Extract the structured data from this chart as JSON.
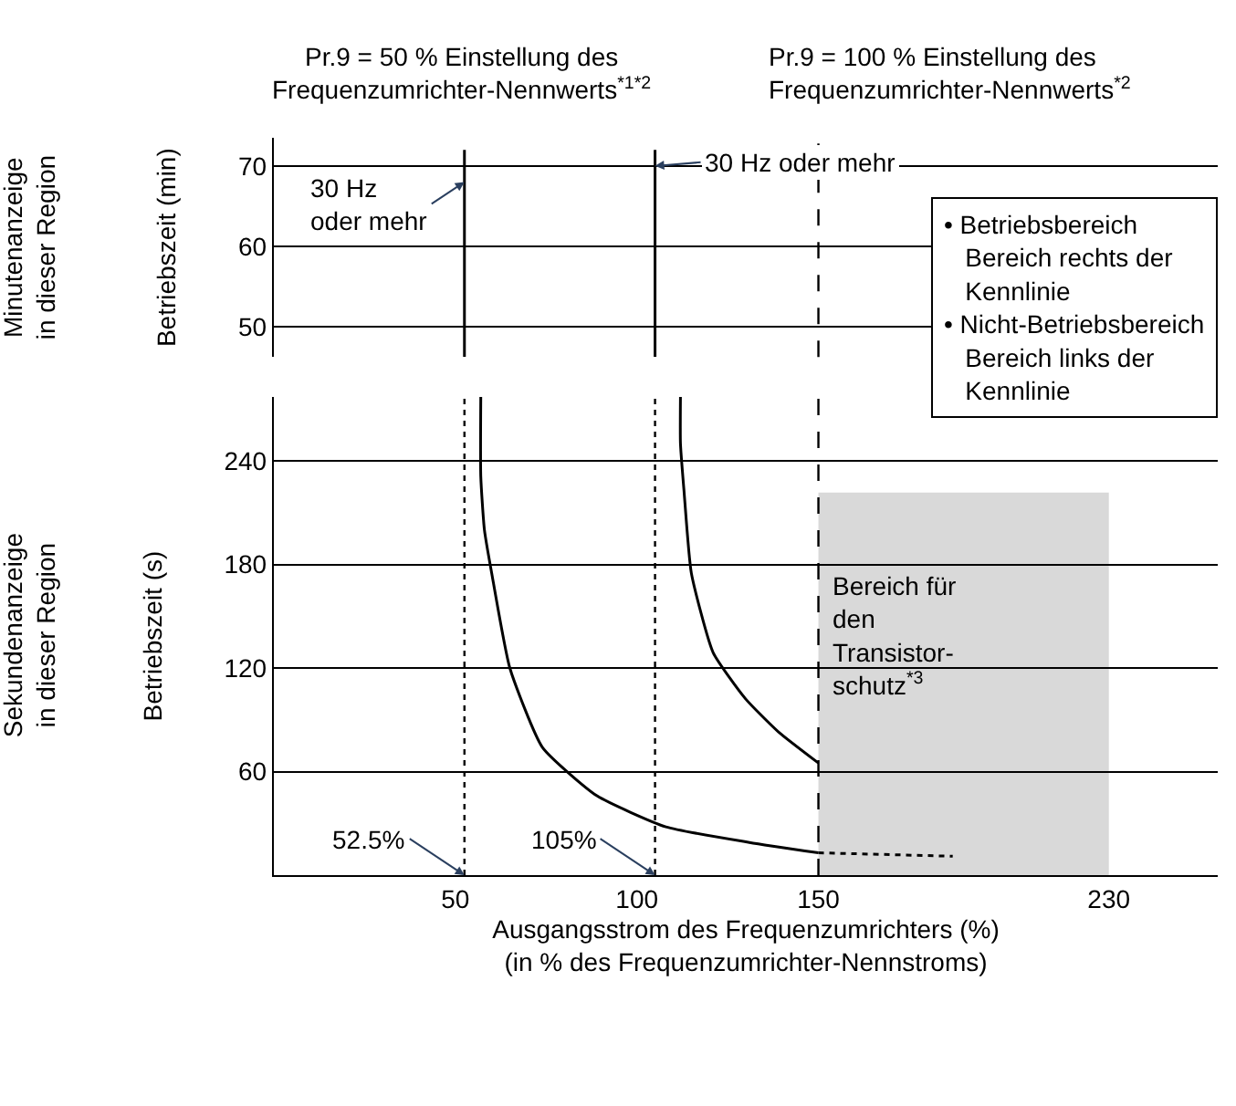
{
  "chart_data": [
    {
      "type": "line",
      "title": "Pr.9 = 50 % Einstellung des\nFrequenzumrichter-Nennwerts$^{*1*2}$",
      "subtitle": "Pr.9 = 100 % Einstellung des\nFrequenzumrichter-Nennwerts$^{*2}$",
      "ylabel": "Betriebszeit (min)",
      "xlim": [
        0,
        260
      ],
      "ylim": [
        46.2,
        73.5
      ],
      "yticks": [
        50,
        60,
        70
      ],
      "grid": "y",
      "tick_labels": "y",
      "series": [
        {
          "color": "#000000",
          "x": [
            52.5,
            52.5
          ],
          "values": [
            46.2,
            72
          ]
        },
        {
          "color": "#000000",
          "x": [
            105,
            105
          ],
          "values": [
            46.2,
            72
          ]
        }
      ],
      "ref_lines": [
        {
          "axis": "x",
          "value": 150,
          "line_style": "dashed"
        }
      ],
      "annotations": [
        {
          "text": "30 Hz\noder mehr",
          "x": 52.5,
          "y": 68
        },
        {
          "text": "30 Hz oder mehr",
          "x": 105,
          "y": 70
        },
        "• Betriebsbereich\n   Bereich rechts der\n   Kennlinie\n• Nicht-Betriebsbereich\n   Bereich links der\n   Kennlinie",
        "Minutenanzeige\nin dieser Region"
      ]
    },
    {
      "type": "line",
      "xlabel": "Ausgangsstrom des Frequenzumrichters (%)\n(in % des Frequenzumrichter-Nennstroms)",
      "ylabel": "Betriebszeit (s)",
      "xlim": [
        0,
        260
      ],
      "xticks": [
        50,
        100,
        150,
        230
      ],
      "ylim": [
        0,
        277
      ],
      "yticks": [
        60,
        120,
        180,
        240
      ],
      "grid": "y",
      "line_style": "solid",
      "series": [
        {
          "color": "#000000",
          "x": [
            57,
            57,
            58,
            60,
            65,
            74,
            89,
            108,
            131,
            150
          ],
          "values": [
            277,
            231,
            200,
            175,
            120,
            74,
            46,
            28,
            19,
            13
          ]
        },
        {
          "color": "#000000",
          "line_style": "dotted",
          "x": [
            150,
            187
          ],
          "values": [
            13,
            11
          ]
        },
        {
          "color": "#000000",
          "x": [
            112,
            112,
            113,
            115,
            121,
            130,
            139,
            150
          ],
          "values": [
            277,
            250,
            222,
            175,
            129,
            102,
            83,
            65
          ]
        }
      ],
      "ref_lines": [
        {
          "axis": "x",
          "value": 52.5,
          "line_style": "dotted",
          "label": "52.5%"
        },
        {
          "axis": "x",
          "value": 105,
          "line_style": "dotted",
          "label": "105%"
        },
        {
          "axis": "x",
          "value": 150,
          "line_style": "dashed"
        }
      ],
      "bands": [
        {
          "axis": "x",
          "from": 150,
          "to": 230,
          "color": "#d9d9d9",
          "label": "Bereich für\nden\nTransistor-\nschutz$^{*3}$"
        }
      ],
      "annotations": [
        "Sekundenanzeige\nin dieser Region"
      ]
    }
  ]
}
